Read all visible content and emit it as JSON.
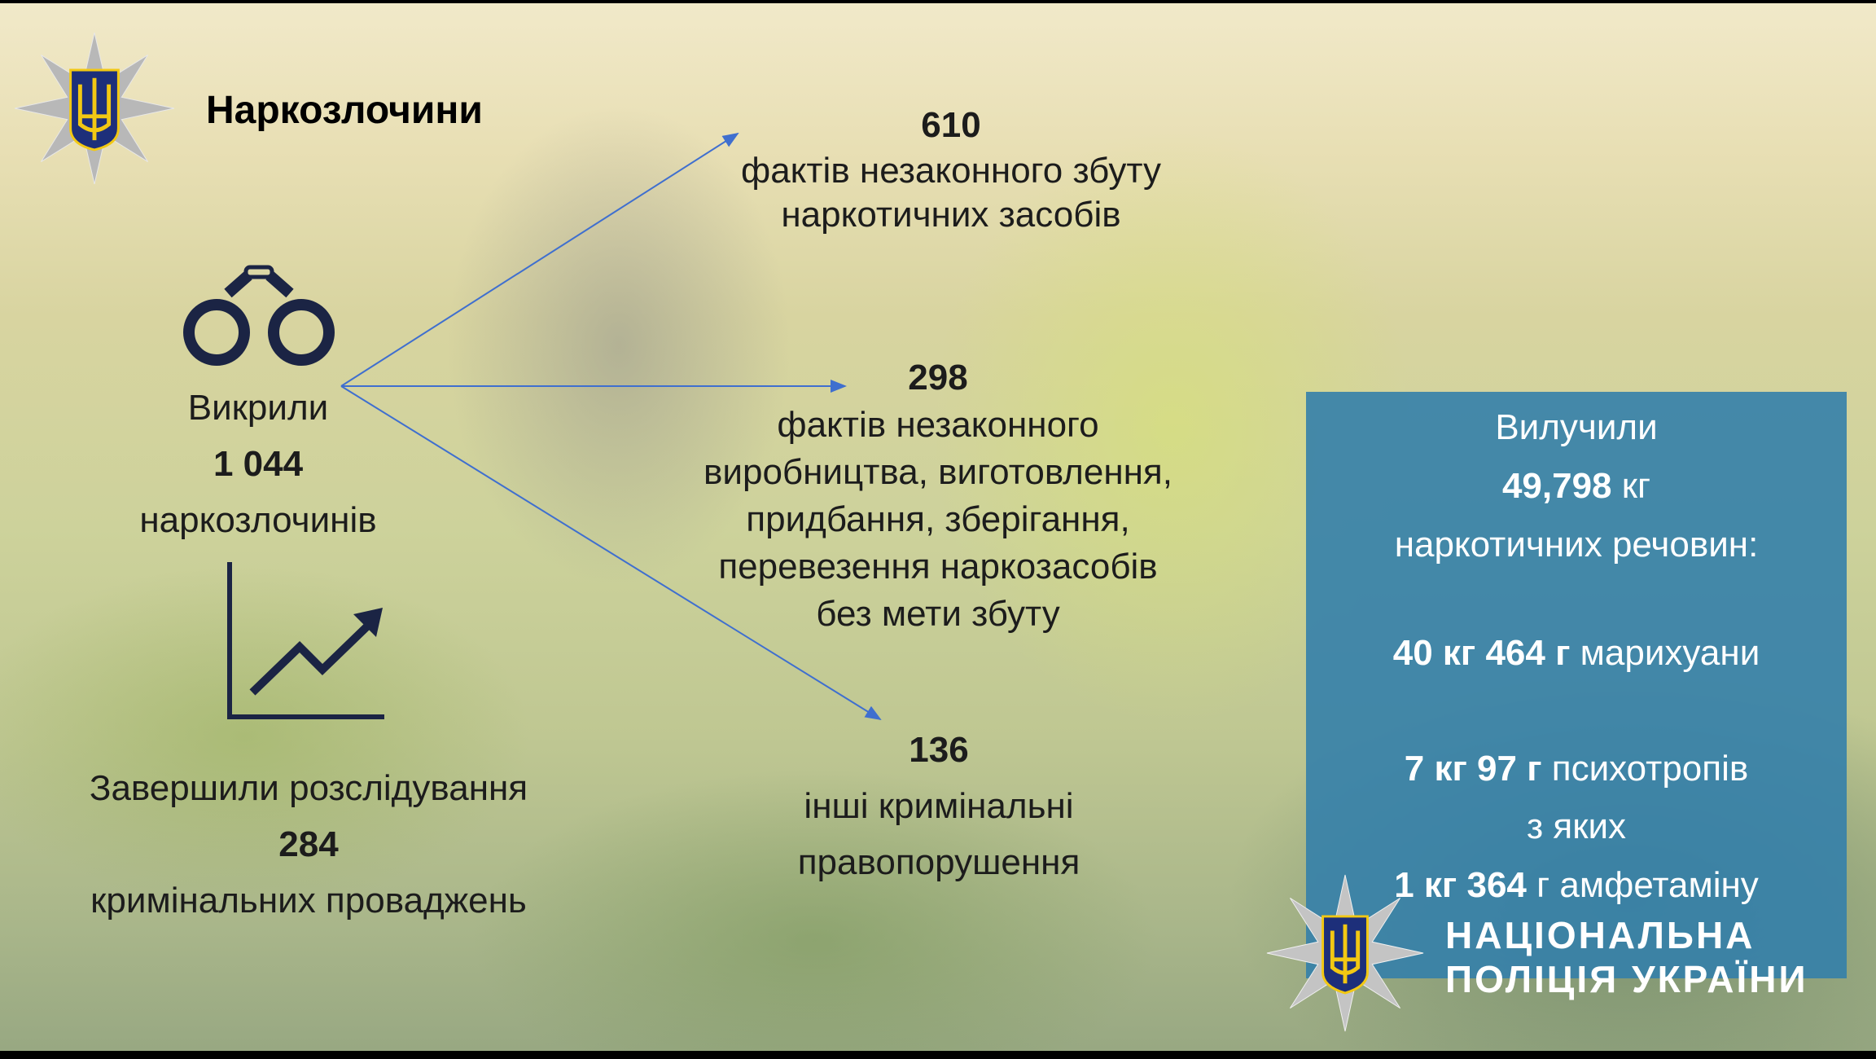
{
  "header": {
    "title": "Наркозлочини",
    "logo": "national-police-star-emblem"
  },
  "left": {
    "exposed_label": "Викрили",
    "exposed_count": "1 044",
    "exposed_unit": "наркозлочинів",
    "completed_label": "Завершили розслідування",
    "completed_count": "284",
    "completed_unit": "кримінальних проваджень",
    "icons": [
      "handcuffs-icon",
      "growth-chart-icon"
    ]
  },
  "breakdown": [
    {
      "count": "610",
      "lines": [
        "фактів незаконного збуту",
        "наркотичних засобів"
      ]
    },
    {
      "count": "298",
      "lines": [
        "фактів незаконного",
        "виробництва, виготовлення,",
        "придбання, зберігання,",
        "перевезення наркозасобів",
        "без мети збуту"
      ]
    },
    {
      "count": "136",
      "lines": [
        "інші кримінальні",
        "правопорушення"
      ]
    }
  ],
  "seized": {
    "label": "Вилучили",
    "total_value": "49,798",
    "total_unit": "кг",
    "total_desc": "наркотичних речовин:",
    "marijuana_bold": "40 кг 464 г",
    "marijuana_text": "марихуани",
    "psych_bold": "7 кг 97 г",
    "psych_text": "психотропів",
    "of_which": "з яких",
    "amph_bold": "1 кг 364",
    "amph_text": "г амфетаміну"
  },
  "footer": {
    "brand_line1": "НАЦІОНАЛЬНА",
    "brand_line2": "ПОЛІЦІЯ УКРАЇНИ"
  },
  "colors": {
    "box": "#3480aa",
    "arrow": "#3f6fcf",
    "text": "#1c1c1c",
    "emblem_blue": "#1d2f7a",
    "emblem_gold": "#f2c813"
  }
}
